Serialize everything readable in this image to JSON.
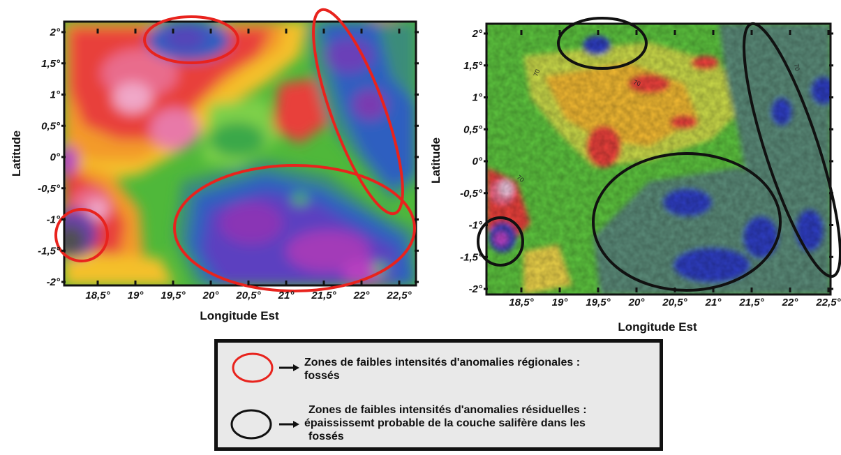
{
  "maps": [
    {
      "id": "regional",
      "xlabel": "Longitude Est",
      "ylabel": "Latitude",
      "x_ticks": [
        "18,5°",
        "19°",
        "19,5°",
        "20°",
        "20,5°",
        "21°",
        "21,5°",
        "22°",
        "22,5°"
      ],
      "y_ticks": [
        "2°",
        "1,5°",
        "1°",
        "0,5°",
        "0°",
        "-0,5°",
        "-1°",
        "-1,5°",
        "-2°"
      ],
      "ellipse_color": "#e8231d"
    },
    {
      "id": "residual",
      "xlabel": "Longitude Est",
      "ylabel": "Latitude",
      "x_ticks": [
        "18,5°",
        "19°",
        "19,5°",
        "20°",
        "20,5°",
        "21°",
        "21,5°",
        "22°",
        "22,5°"
      ],
      "y_ticks": [
        "2°",
        "1,5°",
        "1°",
        "0,5°",
        "0°",
        "-0,5°",
        "-1°",
        "-1,5°",
        "-2°"
      ],
      "contour_labels": [
        "70",
        "70",
        "70",
        "70"
      ],
      "ellipse_color": "#111111"
    }
  ],
  "legend": {
    "items": [
      {
        "color": "#e8231d",
        "line1": "Zones de faibles intensités d'anomalies régionales :",
        "line2": "fossés",
        "line3": ""
      },
      {
        "color": "#111111",
        "line1": "Zones de faibles intensités d'anomalies résiduelles :",
        "line2": "épaississemt probable de la couche salifère dans les",
        "line3": "fossés"
      }
    ]
  }
}
